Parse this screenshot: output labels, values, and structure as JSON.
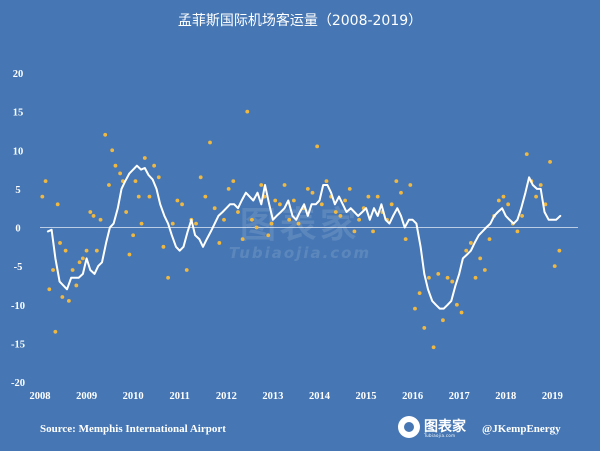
{
  "chart_data": {
    "type": "line",
    "title": "孟菲斯国际机场客运量（2008-2019）",
    "y_ticks": [
      "20",
      "15",
      "10",
      "5",
      "0",
      "-5",
      "-10",
      "-15",
      "-20"
    ],
    "x_ticks": [
      "2008",
      "2009",
      "2010",
      "2011",
      "2012",
      "2013",
      "2014",
      "2015",
      "2016",
      "2017",
      "2018",
      "2019"
    ],
    "ylim": [
      -20,
      20
    ],
    "xlim": [
      2008.0,
      2019.55
    ],
    "grid": false,
    "zero_line": true,
    "colors": {
      "background": "#4677b4",
      "line": "#ffffff",
      "points": "#f0b840"
    },
    "series": [
      {
        "kind": "line",
        "x": [
          2008.17,
          2008.25,
          2008.33,
          2008.42,
          2008.5,
          2008.58,
          2008.67,
          2008.75,
          2008.83,
          2008.92,
          2009.0,
          2009.08,
          2009.17,
          2009.25,
          2009.33,
          2009.42,
          2009.5,
          2009.58,
          2009.67,
          2009.75,
          2009.83,
          2009.92,
          2010.0,
          2010.08,
          2010.17,
          2010.25,
          2010.33,
          2010.42,
          2010.5,
          2010.58,
          2010.67,
          2010.75,
          2010.83,
          2010.92,
          2011.0,
          2011.08,
          2011.17,
          2011.25,
          2011.33,
          2011.42,
          2011.5,
          2011.58,
          2011.67,
          2011.75,
          2011.83,
          2011.92,
          2012.0,
          2012.08,
          2012.17,
          2012.25,
          2012.33,
          2012.42,
          2012.5,
          2012.58,
          2012.67,
          2012.75,
          2012.83,
          2012.92,
          2013.0,
          2013.08,
          2013.17,
          2013.25,
          2013.33,
          2013.42,
          2013.5,
          2013.58,
          2013.67,
          2013.75,
          2013.83,
          2013.92,
          2014.0,
          2014.08,
          2014.17,
          2014.25,
          2014.33,
          2014.42,
          2014.5,
          2014.58,
          2014.67,
          2014.75,
          2014.83,
          2014.92,
          2015.0,
          2015.08,
          2015.17,
          2015.25,
          2015.33,
          2015.42,
          2015.5,
          2015.58,
          2015.67,
          2015.75,
          2015.83,
          2015.92,
          2016.0,
          2016.08,
          2016.17,
          2016.25,
          2016.33,
          2016.42,
          2016.5,
          2016.58,
          2016.67,
          2016.75,
          2016.83,
          2016.92,
          2017.0,
          2017.08,
          2017.17,
          2017.25,
          2017.33,
          2017.42,
          2017.5,
          2017.58,
          2017.67,
          2017.75,
          2017.83,
          2017.92,
          2018.0,
          2018.08,
          2018.17,
          2018.25,
          2018.33,
          2018.42,
          2018.5,
          2018.58,
          2018.67,
          2018.75,
          2018.83,
          2018.92,
          2019.0,
          2019.08,
          2019.17
        ],
        "y": [
          -0.5,
          -0.3,
          -4.0,
          -7.0,
          -7.5,
          -8.0,
          -6.5,
          -6.5,
          -6.5,
          -6.0,
          -4.0,
          -5.5,
          -6.0,
          -5.0,
          -4.5,
          -2.0,
          0.0,
          0.5,
          2.5,
          5.0,
          6.0,
          7.0,
          7.5,
          8.0,
          7.5,
          7.7,
          6.8,
          6.2,
          5.0,
          3.0,
          1.5,
          0.5,
          -1.0,
          -2.5,
          -3.0,
          -2.5,
          -0.5,
          1.0,
          -1.0,
          -1.5,
          -2.5,
          -1.5,
          -0.5,
          0.5,
          1.5,
          2.0,
          2.5,
          3.0,
          3.0,
          2.5,
          3.5,
          4.5,
          4.0,
          3.5,
          4.5,
          3.0,
          5.5,
          3.0,
          1.0,
          1.5,
          2.0,
          2.5,
          3.5,
          1.5,
          1.0,
          2.0,
          3.0,
          1.5,
          3.0,
          3.0,
          3.5,
          5.5,
          5.5,
          4.5,
          3.0,
          4.0,
          3.0,
          2.0,
          2.5,
          2.0,
          1.5,
          2.0,
          2.5,
          1.0,
          2.5,
          1.5,
          3.0,
          1.0,
          0.5,
          1.5,
          2.5,
          1.5,
          0.0,
          1.0,
          1.0,
          0.5,
          -2.5,
          -6.0,
          -8.0,
          -9.5,
          -10.0,
          -10.5,
          -10.5,
          -10.0,
          -9.5,
          -7.5,
          -6.0,
          -4.0,
          -3.5,
          -3.0,
          -2.0,
          -1.0,
          -0.5,
          0.0,
          0.5,
          1.5,
          2.0,
          2.5,
          1.5,
          1.0,
          0.5,
          1.0,
          2.5,
          4.5,
          6.5,
          5.5,
          5.0,
          5.0,
          2.0,
          1.0,
          1.0,
          1.0,
          1.5
        ]
      },
      {
        "kind": "scatter",
        "x": [
          2008.05,
          2008.12,
          2008.2,
          2008.28,
          2008.33,
          2008.38,
          2008.43,
          2008.48,
          2008.55,
          2008.62,
          2008.7,
          2008.78,
          2008.85,
          2008.92,
          2009.0,
          2009.08,
          2009.15,
          2009.22,
          2009.3,
          2009.4,
          2009.48,
          2009.55,
          2009.62,
          2009.72,
          2009.78,
          2009.85,
          2009.92,
          2010.0,
          2010.05,
          2010.12,
          2010.18,
          2010.25,
          2010.35,
          2010.45,
          2010.55,
          2010.65,
          2010.75,
          2010.85,
          2010.95,
          2011.05,
          2011.15,
          2011.25,
          2011.35,
          2011.45,
          2011.55,
          2011.65,
          2011.75,
          2011.85,
          2011.95,
          2012.05,
          2012.15,
          2012.25,
          2012.35,
          2012.45,
          2012.55,
          2012.65,
          2012.75,
          2012.82,
          2012.9,
          2012.97,
          2013.05,
          2013.15,
          2013.25,
          2013.35,
          2013.45,
          2013.55,
          2013.65,
          2013.75,
          2013.85,
          2013.95,
          2014.05,
          2014.15,
          2014.25,
          2014.35,
          2014.45,
          2014.55,
          2014.65,
          2014.75,
          2014.85,
          2014.95,
          2015.05,
          2015.15,
          2015.25,
          2015.35,
          2015.45,
          2015.55,
          2015.65,
          2015.75,
          2015.85,
          2015.95,
          2016.05,
          2016.15,
          2016.25,
          2016.35,
          2016.45,
          2016.55,
          2016.65,
          2016.75,
          2016.85,
          2016.95,
          2017.05,
          2017.15,
          2017.25,
          2017.35,
          2017.45,
          2017.55,
          2017.65,
          2017.75,
          2017.85,
          2017.95,
          2018.05,
          2018.15,
          2018.25,
          2018.35,
          2018.45,
          2018.55,
          2018.65,
          2018.75,
          2018.85,
          2018.95,
          2019.05,
          2019.15
        ],
        "y": [
          4.0,
          6.0,
          -8.0,
          -5.5,
          -13.5,
          3.0,
          -2.0,
          -9.0,
          -3.0,
          -9.5,
          -5.5,
          -7.5,
          -4.5,
          -4.0,
          -3.0,
          2.0,
          1.5,
          -3.0,
          1.0,
          12.0,
          5.5,
          10.0,
          8.0,
          7.0,
          6.0,
          2.0,
          -3.5,
          -1.0,
          6.0,
          4.0,
          0.5,
          9.0,
          4.0,
          8.0,
          6.5,
          -2.5,
          -6.5,
          0.5,
          3.5,
          3.0,
          -5.5,
          1.0,
          0.5,
          6.5,
          4.0,
          11.0,
          2.5,
          -2.0,
          1.0,
          5.0,
          6.0,
          2.0,
          -1.5,
          15.0,
          1.0,
          0.0,
          5.5,
          4.0,
          -1.0,
          0.5,
          3.5,
          3.0,
          5.5,
          1.0,
          3.5,
          0.5,
          2.5,
          5.0,
          4.5,
          10.5,
          3.0,
          6.0,
          4.0,
          2.0,
          1.5,
          3.5,
          5.0,
          -0.5,
          1.0,
          2.5,
          4.0,
          -0.5,
          4.0,
          2.0,
          1.0,
          3.0,
          6.0,
          4.5,
          -1.5,
          5.5,
          -10.5,
          -8.5,
          -13.0,
          -6.5,
          -15.5,
          -6.0,
          -12.0,
          -6.5,
          -7.0,
          -10.0,
          -11.0,
          -3.0,
          -2.0,
          -6.5,
          -4.0,
          -5.5,
          -1.5,
          1.5,
          3.5,
          4.0,
          3.0,
          0.5,
          -0.5,
          1.5,
          9.5,
          6.0,
          4.0,
          5.5,
          3.0,
          8.5,
          -5.0,
          -3.0
        ]
      }
    ]
  },
  "footer": {
    "source": "Source: Memphis International Airport",
    "logo_name": "图表家",
    "logo_sub": "Tubiaojia.com",
    "handle": "@JKempEnergy"
  },
  "watermark": {
    "main": "图表家",
    "sub": "Tubiaojia.com"
  }
}
